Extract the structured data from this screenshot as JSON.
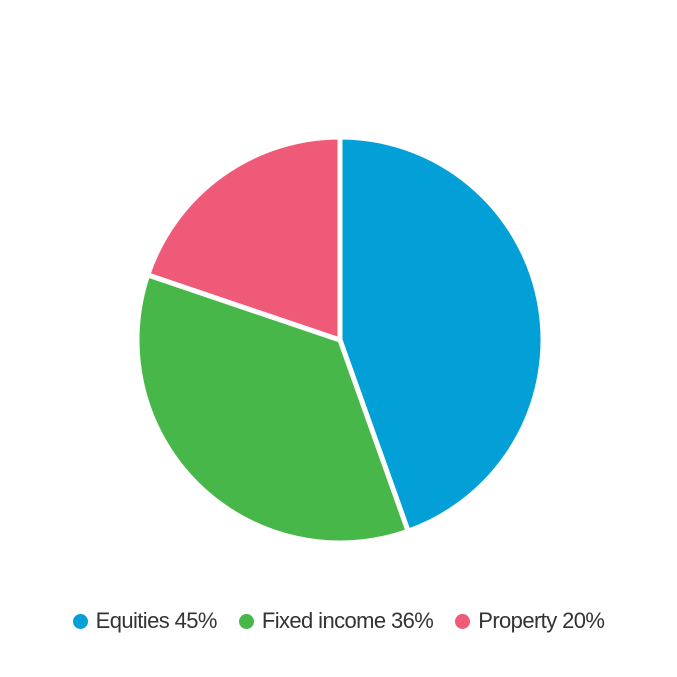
{
  "chart_data": {
    "type": "pie",
    "title": "",
    "categories": [
      "Equities",
      "Fixed income",
      "Property"
    ],
    "values": [
      45,
      36,
      20
    ],
    "unit": "%",
    "colors": [
      "#039fd7",
      "#48b749",
      "#ef5a78"
    ],
    "legend_position": "bottom",
    "legend": [
      {
        "label": "Equities 45%",
        "color": "#039fd7"
      },
      {
        "label": "Fixed income 36%",
        "color": "#48b749"
      },
      {
        "label": "Property 20%",
        "color": "#ef5a78"
      }
    ]
  }
}
